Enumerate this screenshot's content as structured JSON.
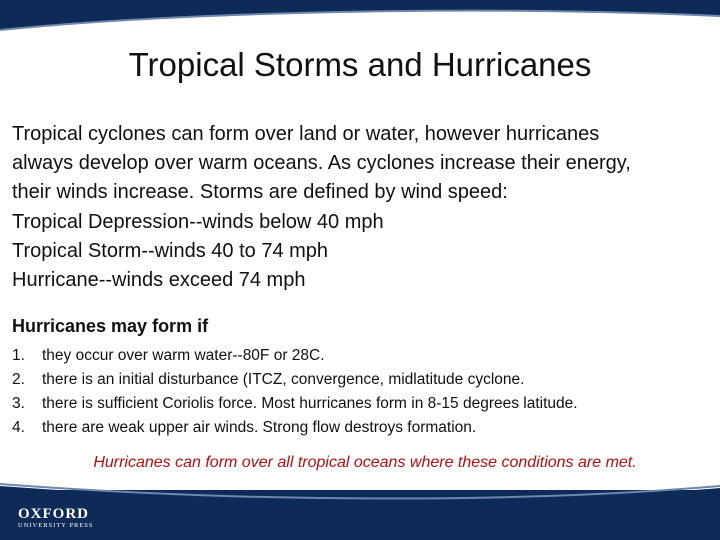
{
  "title": "Tropical Storms and Hurricanes",
  "body_lines": [
    "Tropical cyclones can form over land or water, however hurricanes",
    "always develop over warm oceans. As cyclones increase their energy,",
    "their winds increase. Storms are defined by wind speed:",
    "Tropical Depression--winds below 40 mph",
    "Tropical Storm--winds 40 to 74 mph",
    "Hurricane--winds exceed 74 mph"
  ],
  "subheading": "Hurricanes may form if",
  "list": [
    {
      "marker": "1.",
      "text": "they occur over warm water--80F or 28C."
    },
    {
      "marker": "2.",
      "text": "there is an initial disturbance (ITCZ, convergence, midlatitude cyclone."
    },
    {
      "marker": "3.",
      "text": "there is sufficient Coriolis force. Most hurricanes form in 8-15 degrees latitude."
    },
    {
      "marker": "4.",
      "text": "there are weak upper air winds. Strong flow destroys formation."
    }
  ],
  "note": "Hurricanes can form over all tropical oceans where these conditions are met.",
  "logo": {
    "name": "OXFORD",
    "subtitle": "UNIVERSITY PRESS"
  }
}
